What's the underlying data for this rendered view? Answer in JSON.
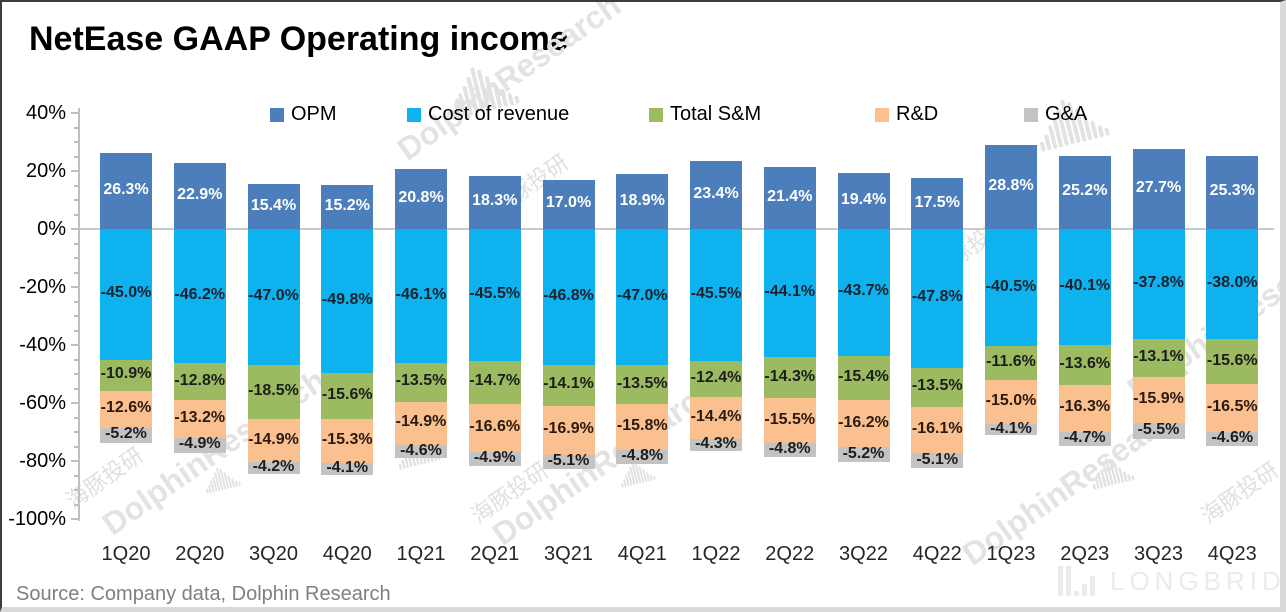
{
  "title": "NetEase GAAP Operating income",
  "source_note": "Source: Company data, Dolphin Research",
  "watermark": {
    "text_en": "DolphinResearch",
    "text_cn": "海豚投研",
    "logo_text": "LONGBRIDGE"
  },
  "colors": {
    "opm": "#4d7ebc",
    "cost_of_revenue": "#0db2ef",
    "total_sm": "#9cba5f",
    "rd": "#fac08f",
    "ga": "#c3c3c3",
    "axis": "#bfbfbf",
    "zero_line": "#c9c9c9",
    "source_text": "#7f7f7f",
    "watermark": "#e2e2e2"
  },
  "chart_data": {
    "type": "bar",
    "stacked": true,
    "title": "NetEase GAAP Operating income",
    "xlabel": "",
    "ylabel": "",
    "ylim": [
      -100,
      40
    ],
    "grid": "zero-line-only",
    "legend_position": "top",
    "categories": [
      "1Q20",
      "2Q20",
      "3Q20",
      "4Q20",
      "1Q21",
      "2Q21",
      "3Q21",
      "4Q21",
      "1Q22",
      "2Q22",
      "3Q22",
      "4Q22",
      "1Q23",
      "2Q23",
      "3Q23",
      "4Q23"
    ],
    "yticks": [
      "40%",
      "20%",
      "0%",
      "-20%",
      "-40%",
      "-60%",
      "-80%",
      "-100%"
    ],
    "ytick_values": [
      40,
      20,
      0,
      -20,
      -40,
      -60,
      -80,
      -100
    ],
    "series": [
      {
        "name": "OPM",
        "color": "#4d7ebc",
        "label_color": "#ffffff",
        "values": [
          26.3,
          22.9,
          15.4,
          15.2,
          20.8,
          18.3,
          17.0,
          18.9,
          23.4,
          21.4,
          19.4,
          17.5,
          28.8,
          25.2,
          27.7,
          25.3
        ]
      },
      {
        "name": "Cost of revenue",
        "color": "#0db2ef",
        "label_color": "#18222e",
        "values": [
          -45.0,
          -46.2,
          -47.0,
          -49.8,
          -46.1,
          -45.5,
          -46.8,
          -47.0,
          -45.5,
          -44.1,
          -43.7,
          -47.8,
          -40.5,
          -40.1,
          -37.8,
          -38.0
        ]
      },
      {
        "name": "Total S&M",
        "color": "#9cba5f",
        "label_color": "#1d1d1d",
        "values": [
          -10.9,
          -12.8,
          -18.5,
          -15.6,
          -13.5,
          -14.7,
          -14.1,
          -13.5,
          -12.4,
          -14.3,
          -15.4,
          -13.5,
          -11.6,
          -13.6,
          -13.1,
          -15.6
        ]
      },
      {
        "name": "R&D",
        "color": "#fac08f",
        "label_color": "#2a1a10",
        "values": [
          -12.6,
          -13.2,
          -14.9,
          -15.3,
          -14.9,
          -16.6,
          -16.9,
          -15.8,
          -14.4,
          -15.5,
          -16.2,
          -16.1,
          -15.0,
          -16.3,
          -15.9,
          -16.5
        ]
      },
      {
        "name": "G&A",
        "color": "#c3c3c3",
        "label_color": "#1d1d1d",
        "values": [
          -5.2,
          -4.9,
          -4.2,
          -4.1,
          -4.6,
          -4.9,
          -5.1,
          -4.8,
          -4.3,
          -4.8,
          -5.2,
          -5.1,
          -4.1,
          -4.7,
          -5.5,
          -4.6
        ]
      }
    ]
  }
}
